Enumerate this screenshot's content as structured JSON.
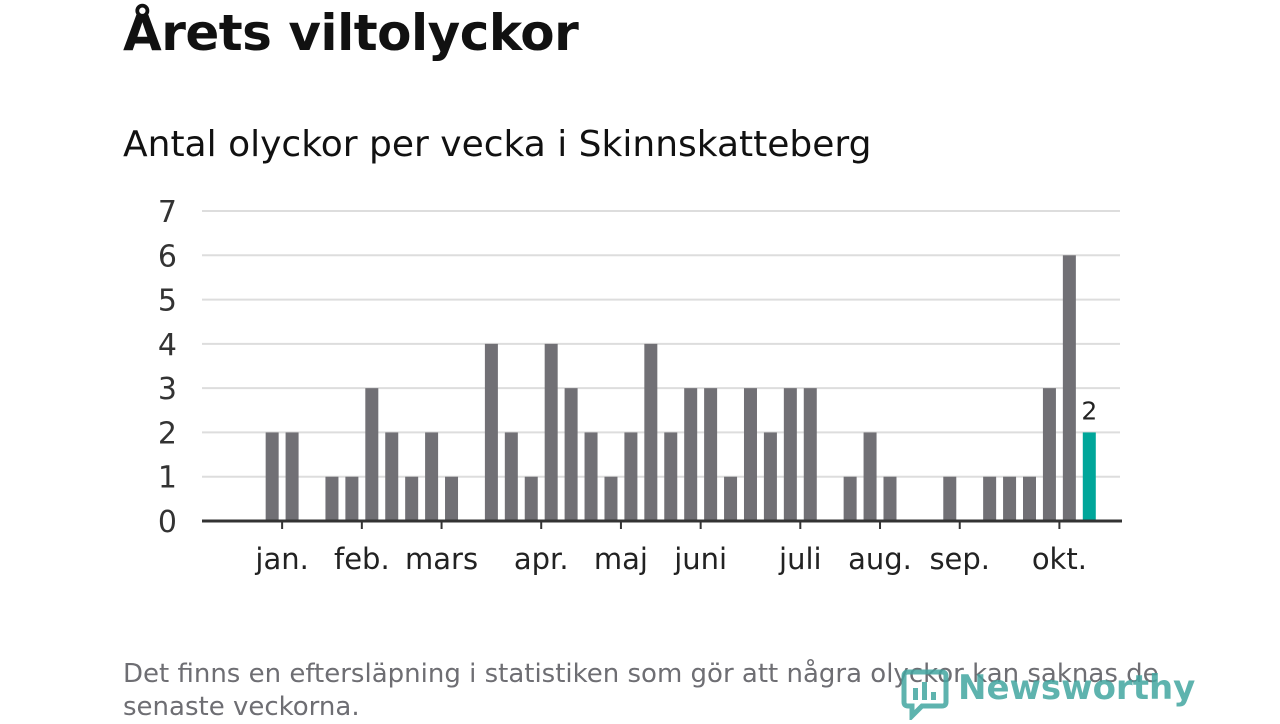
{
  "title": "Årets viltolyckor",
  "subtitle": "Antal olyckor per vecka i Skinnskatteberg",
  "footnote": "Det finns en eftersläpning i statistiken som gör att några olyckor kan saknas de senaste veckorna.",
  "brand": {
    "name": "Newsworthy",
    "color": "#43a6a1"
  },
  "chart_data": {
    "type": "bar",
    "title": "Antal olyckor per vecka i Skinnskatteberg",
    "xlabel": "",
    "ylabel": "",
    "ylim": [
      0,
      7
    ],
    "yticks": [
      0,
      1,
      2,
      3,
      4,
      5,
      6,
      7
    ],
    "grid": true,
    "weeks": [
      1,
      2,
      3,
      4,
      5,
      6,
      7,
      8,
      9,
      10,
      11,
      12,
      13,
      14,
      15,
      16,
      17,
      18,
      19,
      20,
      21,
      22,
      23,
      24,
      25,
      26,
      27,
      28,
      29,
      30,
      31,
      32,
      33,
      34,
      35,
      36,
      37,
      38,
      39,
      40,
      41,
      42,
      43,
      44,
      45
    ],
    "values": [
      0,
      0,
      2,
      2,
      0,
      1,
      1,
      3,
      2,
      1,
      2,
      1,
      0,
      4,
      2,
      1,
      4,
      3,
      2,
      1,
      2,
      4,
      2,
      3,
      3,
      1,
      3,
      2,
      3,
      3,
      0,
      1,
      2,
      1,
      0,
      0,
      1,
      0,
      1,
      1,
      1,
      3,
      6,
      2,
      0
    ],
    "month_labels": [
      {
        "label": "jan.",
        "week": 3.5
      },
      {
        "label": "feb.",
        "week": 7.5
      },
      {
        "label": "mars",
        "week": 11.5
      },
      {
        "label": "apr.",
        "week": 16.5
      },
      {
        "label": "maj",
        "week": 20.5
      },
      {
        "label": "juni",
        "week": 24.5
      },
      {
        "label": "juli",
        "week": 29.5
      },
      {
        "label": "aug.",
        "week": 33.5
      },
      {
        "label": "sep.",
        "week": 37.5
      },
      {
        "label": "okt.",
        "week": 42.5
      }
    ],
    "highlight": {
      "week": 44,
      "value": 2,
      "label": "2"
    },
    "colors": {
      "bar": "#717075",
      "highlight": "#00a69a",
      "grid": "#dddddd",
      "axis": "#333333"
    }
  }
}
